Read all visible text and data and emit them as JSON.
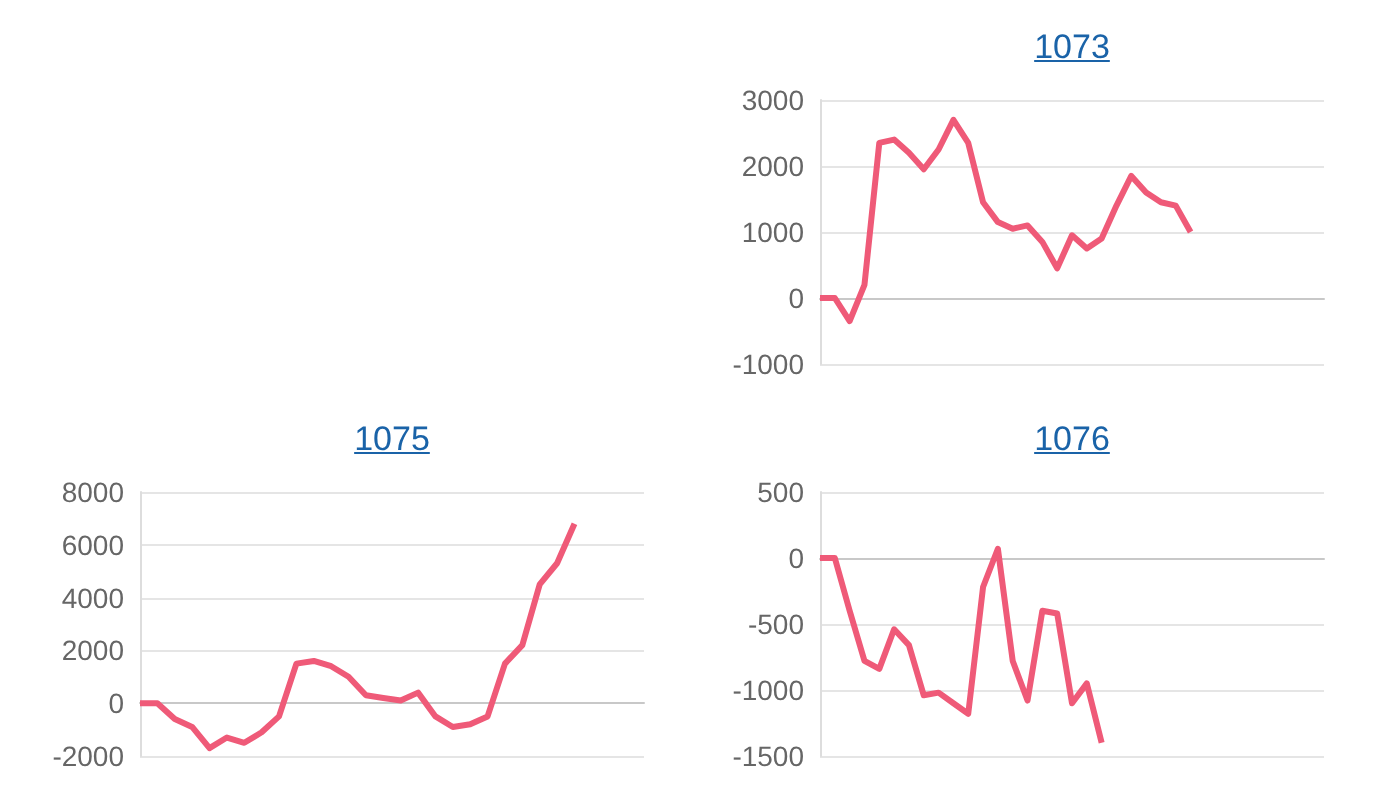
{
  "chart_data": [
    {
      "type": "line",
      "title": "1073",
      "categories": [
        null,
        null,
        null,
        null,
        null,
        null,
        null,
        null,
        null,
        null,
        null,
        null,
        null,
        null,
        null,
        null,
        null,
        null,
        null,
        null,
        null,
        null,
        null,
        null,
        null,
        null,
        null,
        null,
        null,
        null,
        null,
        null,
        null,
        null,
        null
      ],
      "series": [
        {
          "color": "#ef5a78",
          "values": [
            0,
            0,
            -350,
            200,
            2350,
            2400,
            2200,
            1950,
            2250,
            2700,
            2350,
            1450,
            1150,
            1050,
            1100,
            850,
            450,
            950,
            750,
            900,
            1400,
            1850,
            1600,
            1450,
            1400,
            1000,
            null,
            null,
            null,
            null,
            null,
            null,
            null,
            null,
            null
          ]
        }
      ],
      "ylim": [
        -1000,
        3000
      ],
      "yticks": [
        -1000,
        0,
        1000,
        2000,
        3000
      ],
      "grid": "y",
      "tick_labels": "y",
      "line_style": "solid"
    },
    {
      "type": "line",
      "title": "1075",
      "categories": [
        null,
        null,
        null,
        null,
        null,
        null,
        null,
        null,
        null,
        null,
        null,
        null,
        null,
        null,
        null,
        null,
        null,
        null,
        null,
        null,
        null,
        null,
        null,
        null,
        null,
        null,
        null,
        null,
        null,
        null
      ],
      "series": [
        {
          "color": "#ef5a78",
          "values": [
            0,
            0,
            -600,
            -900,
            -1700,
            -1300,
            -1500,
            -1100,
            -500,
            1500,
            1600,
            1400,
            1000,
            300,
            200,
            100,
            400,
            -500,
            -900,
            -800,
            -500,
            1500,
            2200,
            4500,
            5300,
            6800,
            null,
            null,
            null,
            null
          ]
        }
      ],
      "ylim": [
        -2000,
        8000
      ],
      "yticks": [
        -2000,
        0,
        2000,
        4000,
        6000,
        8000
      ],
      "grid": "y",
      "tick_labels": "y",
      "line_style": "solid"
    },
    {
      "type": "line",
      "title": "1076",
      "categories": [
        null,
        null,
        null,
        null,
        null,
        null,
        null,
        null,
        null,
        null,
        null,
        null,
        null,
        null,
        null,
        null,
        null,
        null,
        null,
        null,
        null,
        null,
        null,
        null,
        null,
        null,
        null,
        null,
        null,
        null,
        null,
        null,
        null,
        null,
        null
      ],
      "series": [
        {
          "color": "#ef5a78",
          "values": [
            0,
            0,
            -400,
            -780,
            -840,
            -540,
            -660,
            -1040,
            -1020,
            -1100,
            -1180,
            -220,
            70,
            -780,
            -1080,
            -400,
            -420,
            -1100,
            -950,
            -1400,
            null,
            null,
            null,
            null,
            null,
            null,
            null,
            null,
            null,
            null,
            null,
            null,
            null,
            null,
            null
          ]
        }
      ],
      "ylim": [
        -1500,
        500
      ],
      "yticks": [
        -1500,
        -1000,
        -500,
        0,
        500
      ],
      "grid": "y",
      "tick_labels": "y",
      "line_style": "solid"
    }
  ]
}
